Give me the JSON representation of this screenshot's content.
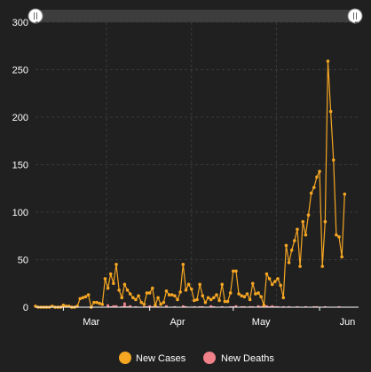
{
  "colors": {
    "background": "#202020",
    "cases": "#f5a623",
    "deaths": "#f0808a",
    "axis": "#ffffff",
    "grid": "#3a3a3a",
    "slider": "#3d3d3d"
  },
  "chart_data": {
    "type": "line",
    "title": "",
    "xlabel": "",
    "ylabel": "",
    "x_start": "2020-02-20",
    "x_end": "2020-06-15",
    "x_tick_labels": [
      "Mar",
      "Apr",
      "May",
      "Jun"
    ],
    "x_tick_dates": [
      "2020-03-01",
      "2020-04-01",
      "2020-05-01",
      "2020-06-01"
    ],
    "ylim": [
      0,
      300
    ],
    "y_ticks": [
      0,
      50,
      100,
      150,
      200,
      250,
      300
    ],
    "grid": true,
    "legend_position": "bottom",
    "series": [
      {
        "name": "New Cases",
        "mark": "line",
        "color": "#f5a623",
        "values": [
          1,
          0,
          0,
          0,
          0,
          0,
          1,
          0,
          0,
          0,
          2,
          1,
          1,
          0,
          0,
          1,
          9,
          10,
          11,
          13,
          0,
          5,
          5,
          4,
          3,
          30,
          20,
          35,
          25,
          45,
          18,
          10,
          24,
          18,
          14,
          10,
          8,
          12,
          5,
          3,
          15,
          15,
          20,
          2,
          10,
          3,
          5,
          17,
          13,
          13,
          12,
          8,
          16,
          45,
          18,
          24,
          19,
          7,
          8,
          24,
          12,
          5,
          10,
          8,
          10,
          13,
          7,
          24,
          6,
          6,
          15,
          38,
          38,
          14,
          12,
          11,
          14,
          8,
          25,
          14,
          15,
          11,
          2,
          35,
          30,
          24,
          27,
          30,
          23,
          10,
          65,
          47,
          60,
          70,
          82,
          43,
          90,
          76,
          97,
          120,
          126,
          137,
          143,
          43,
          90,
          259,
          206,
          155,
          76,
          74,
          53,
          119
        ]
      },
      {
        "name": "New Deaths",
        "mark": "bar",
        "color": "#f0808a",
        "values": [
          0,
          0,
          0,
          0,
          0,
          0,
          0,
          0,
          0,
          0,
          0,
          0,
          0,
          0,
          0,
          0,
          0,
          0,
          0,
          0,
          0,
          0,
          0,
          0,
          0,
          0,
          3,
          1,
          2,
          2,
          0,
          1,
          5,
          1,
          2,
          0,
          1,
          0,
          0,
          1,
          1,
          2,
          1,
          0,
          1,
          0,
          0,
          2,
          0,
          0,
          1,
          0,
          0,
          2,
          1,
          0,
          0,
          1,
          0,
          1,
          1,
          0,
          0,
          2,
          1,
          0,
          0,
          1,
          0,
          0,
          1,
          1,
          2,
          0,
          1,
          1,
          0,
          1,
          1,
          0,
          2,
          1,
          0,
          2,
          1,
          2,
          1,
          1,
          0,
          1,
          0,
          1,
          0,
          0,
          1,
          0,
          0,
          1,
          0,
          0,
          1,
          1,
          0,
          0,
          1,
          0,
          0,
          0,
          0,
          1,
          0,
          0
        ]
      }
    ]
  },
  "legend": {
    "cases_label": "New Cases",
    "deaths_label": "New Deaths"
  }
}
